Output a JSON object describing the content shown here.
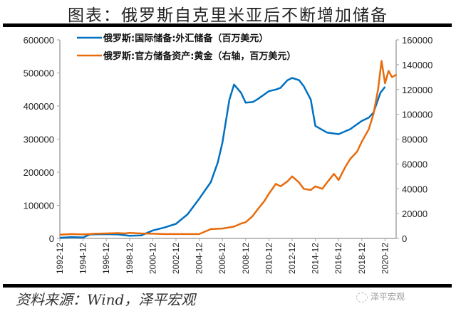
{
  "title": "图表：俄罗斯自克里米亚后不断增加储备",
  "source": "资料来源：Wind，泽平宏观",
  "watermark": "泽平宏观",
  "colors": {
    "fx": "#0070C0",
    "gold": "#E86B0C",
    "axis": "#a6a6a6"
  },
  "chart_data": {
    "type": "line",
    "title": "图表：俄罗斯自克里米亚后不断增加储备",
    "xlabel": "",
    "ylabel": "",
    "x_tick_labels": [
      "1992-12",
      "1994-12",
      "1996-12",
      "1998-12",
      "2000-12",
      "2002-12",
      "2004-12",
      "2006-12",
      "2008-12",
      "2010-12",
      "2012-12",
      "2014-12",
      "2016-12",
      "2018-12",
      "2020-12"
    ],
    "y_left": {
      "ticks": [
        0,
        100000,
        200000,
        300000,
        400000,
        500000,
        600000
      ],
      "ylim": [
        0,
        600000
      ]
    },
    "y_right": {
      "ticks": [
        0,
        20000,
        40000,
        60000,
        80000,
        100000,
        120000,
        140000,
        160000
      ],
      "ylim": [
        0,
        160000
      ]
    },
    "legend_position": "top-left",
    "grid": false,
    "series": [
      {
        "name": "俄罗斯:国际储备:外汇储备（百万美元）",
        "axis": "left",
        "x": [
          1992.9,
          1993.9,
          1994.9,
          1995.5,
          1996.9,
          1997.9,
          1998.9,
          1999.9,
          2000.9,
          2001.9,
          2002.9,
          2003.9,
          2004.9,
          2005.9,
          2006.5,
          2006.9,
          2007.5,
          2007.9,
          2008.5,
          2008.9,
          2009.5,
          2009.9,
          2010.9,
          2011.5,
          2011.9,
          2012.5,
          2012.9,
          2013.5,
          2013.9,
          2014.5,
          2014.9,
          2015.9,
          2016.9,
          2017.9,
          2018.9,
          2019.5,
          2019.9,
          2020.5,
          2020.9
        ],
        "values": [
          2000,
          4000,
          3000,
          12000,
          13000,
          12000,
          8000,
          9000,
          24000,
          33000,
          44000,
          73000,
          120000,
          170000,
          230000,
          290000,
          420000,
          465000,
          440000,
          410000,
          412000,
          420000,
          445000,
          450000,
          455000,
          478000,
          485000,
          478000,
          460000,
          420000,
          340000,
          320000,
          315000,
          330000,
          355000,
          365000,
          380000,
          440000,
          458000
        ]
      },
      {
        "name": "俄罗斯:官方储备资产:黄金（右轴，百万美元）",
        "axis": "right",
        "x": [
          1992.9,
          1993.9,
          1994.9,
          1995.9,
          1996.9,
          1997.9,
          1998.5,
          1998.9,
          1999.9,
          2000.9,
          2001.9,
          2002.9,
          2003.9,
          2004.9,
          2005.9,
          2006.9,
          2007.9,
          2008.5,
          2008.9,
          2009.5,
          2009.9,
          2010.5,
          2010.9,
          2011.5,
          2011.9,
          2012.5,
          2012.9,
          2013.5,
          2013.9,
          2014.5,
          2014.9,
          2015.5,
          2015.9,
          2016.5,
          2016.9,
          2017.5,
          2017.9,
          2018.5,
          2018.9,
          2019.5,
          2019.9,
          2020.3,
          2020.6,
          2020.9,
          2021.2,
          2021.5,
          2021.9
        ],
        "values": [
          3000,
          3500,
          3200,
          3800,
          4000,
          4300,
          4000,
          4500,
          4000,
          3800,
          3500,
          3500,
          3500,
          3500,
          7500,
          8000,
          9500,
          12000,
          13000,
          18000,
          23000,
          30000,
          36000,
          44000,
          42000,
          46000,
          50000,
          45000,
          40000,
          39000,
          42000,
          40000,
          45000,
          52000,
          47000,
          58000,
          64000,
          70000,
          78000,
          88000,
          100000,
          120000,
          143000,
          125000,
          135000,
          130000,
          132000
        ]
      }
    ]
  }
}
